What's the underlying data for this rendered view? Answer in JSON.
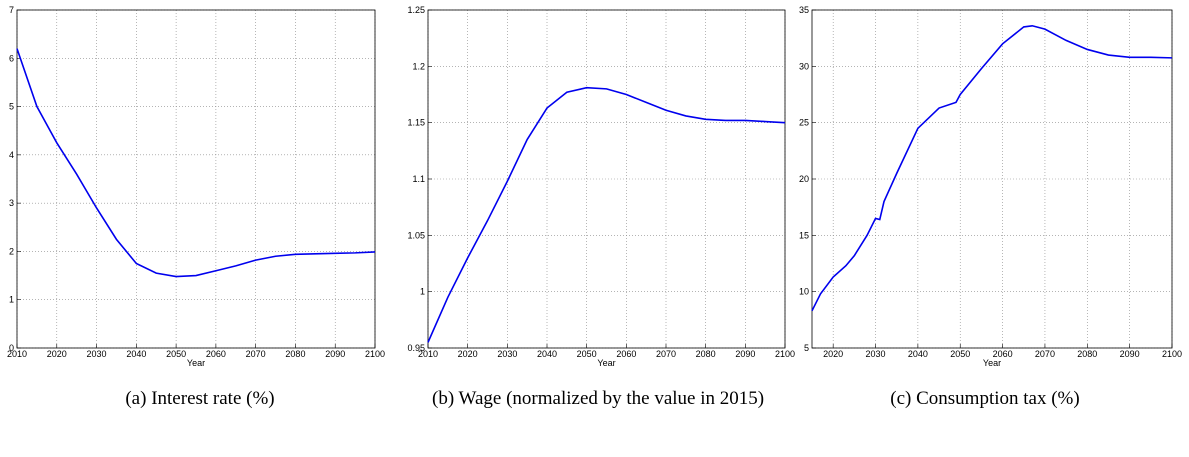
{
  "chart_data": [
    {
      "type": "line",
      "xlabel": "Year",
      "caption": "(a) Interest rate (%)",
      "grid": true,
      "xlim": [
        2010,
        2100
      ],
      "xticks": [
        2010,
        2020,
        2030,
        2040,
        2050,
        2060,
        2070,
        2080,
        2090,
        2100
      ],
      "ylim": [
        0,
        7
      ],
      "yticks": [
        0,
        1,
        2,
        3,
        4,
        5,
        6,
        7
      ],
      "x": [
        2010,
        2015,
        2020,
        2025,
        2030,
        2035,
        2040,
        2045,
        2050,
        2055,
        2060,
        2065,
        2070,
        2075,
        2080,
        2085,
        2090,
        2095,
        2100
      ],
      "series": [
        {
          "color": "#0000ee",
          "values": [
            6.2,
            5.0,
            4.25,
            3.6,
            2.9,
            2.25,
            1.75,
            1.55,
            1.48,
            1.5,
            1.6,
            1.7,
            1.82,
            1.9,
            1.94,
            1.95,
            1.96,
            1.97,
            1.99
          ]
        }
      ]
    },
    {
      "type": "line",
      "xlabel": "Year",
      "caption": "(b) Wage (normalized by the value in 2015)",
      "grid": true,
      "xlim": [
        2010,
        2100
      ],
      "xticks": [
        2010,
        2020,
        2030,
        2040,
        2050,
        2060,
        2070,
        2080,
        2090,
        2100
      ],
      "ylim": [
        0.95,
        1.25
      ],
      "yticks": [
        0.95,
        1,
        1.05,
        1.1,
        1.15,
        1.2,
        1.25
      ],
      "x": [
        2010,
        2015,
        2020,
        2025,
        2030,
        2035,
        2040,
        2045,
        2050,
        2055,
        2060,
        2065,
        2070,
        2075,
        2080,
        2085,
        2090,
        2095,
        2100
      ],
      "series": [
        {
          "color": "#0000ee",
          "values": [
            0.955,
            0.995,
            1.03,
            1.063,
            1.098,
            1.135,
            1.163,
            1.177,
            1.181,
            1.18,
            1.175,
            1.168,
            1.161,
            1.156,
            1.153,
            1.152,
            1.152,
            1.151,
            1.15
          ]
        }
      ]
    },
    {
      "type": "line",
      "xlabel": "Year",
      "caption": "(c) Consumption tax (%)",
      "grid": true,
      "xlim": [
        2015,
        2100
      ],
      "xticks": [
        2020,
        2030,
        2040,
        2050,
        2060,
        2070,
        2080,
        2090,
        2100
      ],
      "ylim": [
        5,
        35
      ],
      "yticks": [
        5,
        10,
        15,
        20,
        25,
        30,
        35
      ],
      "x": [
        2015,
        2017,
        2020,
        2023,
        2025,
        2028,
        2030,
        2031,
        2032,
        2035,
        2040,
        2045,
        2049,
        2050,
        2055,
        2060,
        2065,
        2067,
        2070,
        2075,
        2080,
        2085,
        2090,
        2095,
        2100
      ],
      "series": [
        {
          "color": "#0000ee",
          "values": [
            8.3,
            9.8,
            11.3,
            12.3,
            13.2,
            15,
            16.5,
            16.4,
            18,
            20.5,
            24.5,
            26.3,
            26.8,
            27.5,
            29.8,
            32,
            33.5,
            33.6,
            33.3,
            32.3,
            31.5,
            31.0,
            30.8,
            30.8,
            30.75
          ]
        }
      ]
    }
  ]
}
